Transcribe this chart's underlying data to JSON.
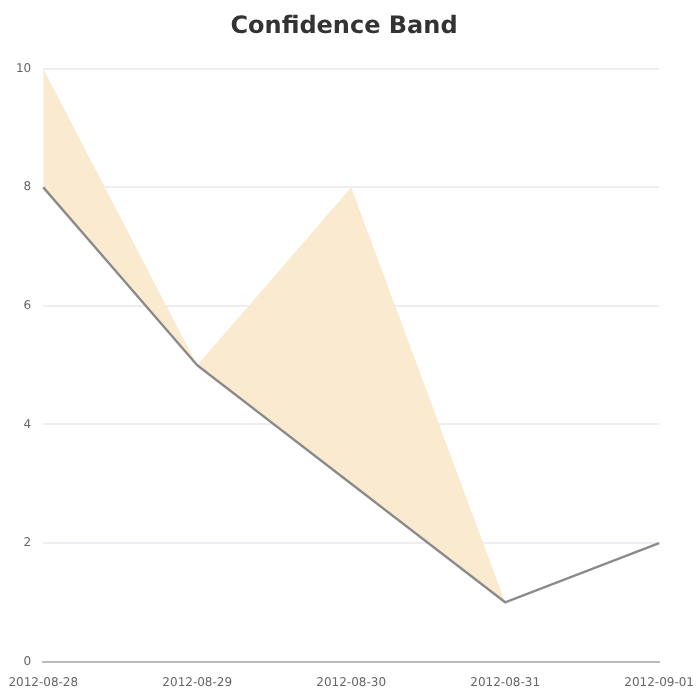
{
  "chart_data": {
    "type": "line",
    "title": "Confidence Band",
    "categories": [
      "2012-08-28",
      "2012-08-29",
      "2012-08-30",
      "2012-08-31",
      "2012-09-01"
    ],
    "series": [
      {
        "color": "#8a8a8a",
        "values": [
          8,
          5,
          3,
          1,
          2
        ],
        "lower": [
          8,
          5,
          3,
          1,
          2
        ],
        "upper": [
          10,
          5,
          8,
          1,
          2
        ]
      }
    ],
    "ylim": [
      0,
      10
    ],
    "yticks": [
      0,
      2,
      4,
      6,
      8,
      10
    ],
    "grid": "y",
    "legend": false,
    "marker": "none",
    "line_style": "solid"
  }
}
